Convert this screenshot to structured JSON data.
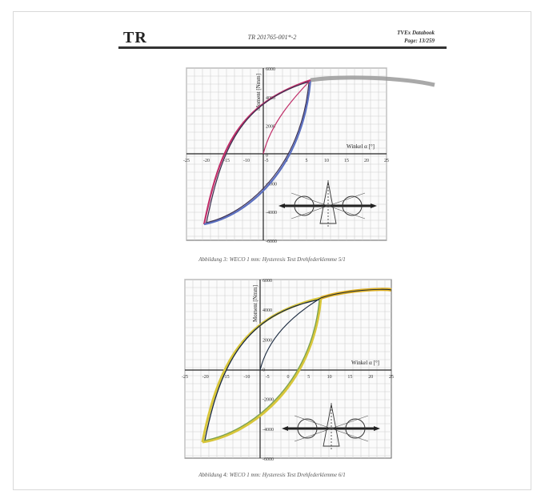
{
  "header": {
    "logo": "TR",
    "doc_number": "TR 201765-001*-2",
    "right_line1": "TVEx Databook",
    "right_line2": "Page: 13/259"
  },
  "figures": [
    {
      "caption": "Abbildung 3: WECO 1 mm: Hysteresis Test Drehfederklemme 5/1",
      "y_axis_label": "Moment [Nmm]",
      "x_axis_label": "Winkel α [°]",
      "x_ticks": [
        "-25",
        "-20",
        "-15",
        "-10",
        "-5",
        "0",
        "5",
        "10",
        "15",
        "20",
        "25"
      ],
      "y_ticks": [
        "6000",
        "4000",
        "2000",
        "0",
        "-2000",
        "-4000",
        "-6000"
      ],
      "colors": [
        "#c0306a",
        "#3a2e4f",
        "#5a6fc0",
        "#9a9a9a"
      ]
    },
    {
      "caption": "Abbildung 4: WECO 1 mm: Hysteresis Test Drehfederklemme 6/1",
      "y_axis_label": "Moment [Nmm]",
      "x_axis_label": "Winkel α [°]",
      "x_ticks": [
        "-25",
        "-20",
        "-15",
        "-10",
        "-5",
        "0",
        "5",
        "10",
        "15",
        "20",
        "25"
      ],
      "y_ticks": [
        "6000",
        "4000",
        "2000",
        "0",
        "-2000",
        "-4000",
        "-6000"
      ],
      "colors": [
        "#d8c63a",
        "#1a2a40",
        "#7aa050",
        "#e0b020"
      ]
    }
  ]
}
